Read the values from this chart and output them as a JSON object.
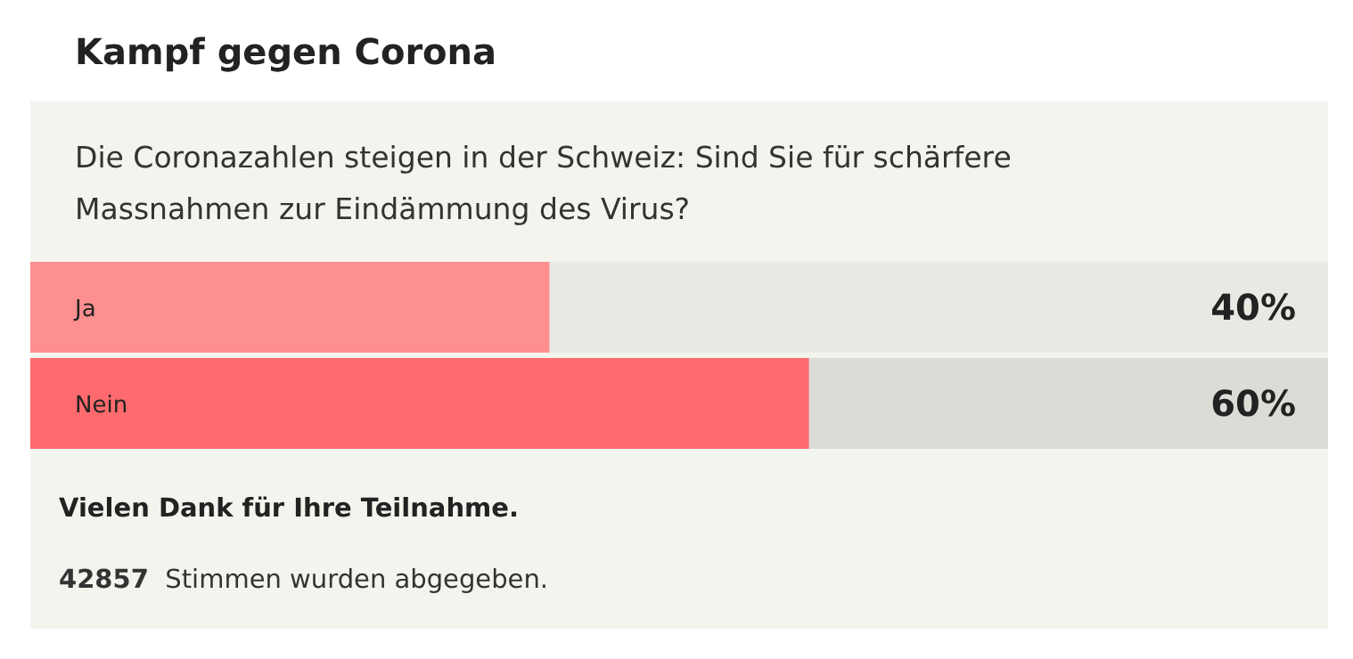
{
  "chart_data": {
    "type": "bar",
    "orientation": "horizontal",
    "title": "Kampf gegen Corona",
    "subtitle": "Die Coronazahlen steigen in der Schweiz: Sind Sie für schärfere Massnahmen zur Eindämmung des Virus?",
    "categories": [
      "Ja",
      "Nein"
    ],
    "values": [
      40,
      60
    ],
    "colors": [
      "#fe8f8f",
      "#fe6a6e"
    ],
    "value_labels": [
      "40%",
      "60%"
    ],
    "xlim": [
      0,
      100
    ],
    "annotations": [
      "Vielen Dank für Ihre Teilnahme.",
      "42857 Stimmen wurden abgegeben."
    ]
  }
}
